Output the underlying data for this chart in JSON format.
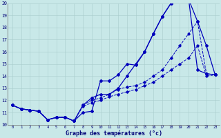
{
  "title": "Graphe des températures (°c)",
  "bg_color": "#c8e8e8",
  "grid_color": "#a8cccc",
  "line_color": "#0000bb",
  "axis_text_color": "#000077",
  "y_min": 10,
  "y_max": 20,
  "line1_y": [
    11.6,
    11.3,
    11.2,
    11.1,
    10.4,
    10.6,
    10.6,
    10.3,
    11.0,
    11.1,
    13.6,
    13.6,
    14.1,
    15.0,
    14.9,
    16.0,
    17.5,
    18.9,
    20.0,
    20.3,
    20.3,
    14.5,
    14.2,
    14.1
  ],
  "line2_y": [
    11.6,
    11.3,
    11.2,
    11.1,
    10.4,
    10.6,
    10.6,
    10.3,
    11.6,
    12.2,
    12.5,
    12.5,
    13.0,
    14.0,
    15.0,
    16.0,
    17.5,
    18.9,
    20.0,
    20.3,
    20.3,
    18.5,
    16.5,
    14.1
  ],
  "line3_y": [
    11.6,
    11.3,
    11.2,
    11.1,
    10.4,
    10.6,
    10.6,
    10.3,
    11.6,
    12.0,
    12.2,
    12.5,
    12.9,
    13.1,
    13.2,
    13.5,
    14.0,
    14.5,
    15.5,
    16.5,
    17.5,
    18.5,
    14.2,
    14.1
  ],
  "line4_y": [
    11.6,
    11.3,
    11.2,
    11.1,
    10.4,
    10.6,
    10.6,
    10.3,
    11.5,
    11.8,
    12.0,
    12.3,
    12.5,
    12.7,
    12.9,
    13.2,
    13.5,
    14.0,
    14.5,
    15.0,
    15.5,
    16.5,
    14.0,
    14.1
  ]
}
